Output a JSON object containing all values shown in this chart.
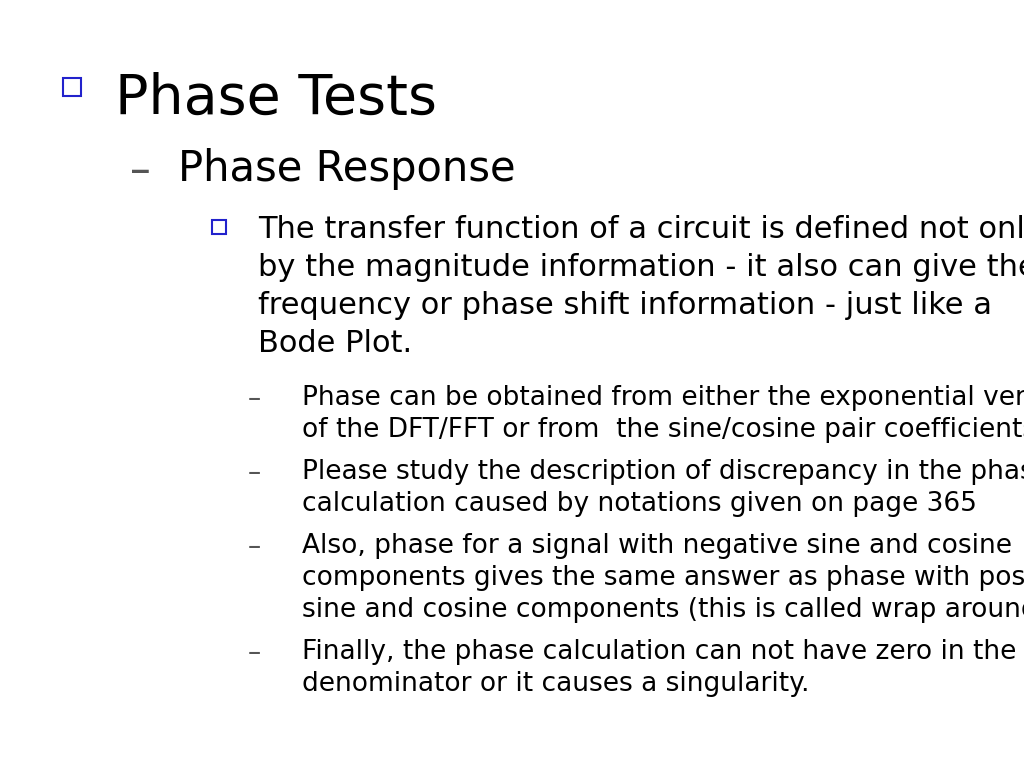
{
  "background_color": "#ffffff",
  "title": "Phase Tests",
  "title_color": "#000000",
  "title_bullet_color": "#2222cc",
  "subtitle": "Phase Response",
  "subtitle_dash_color": "#555555",
  "level2_lines": [
    "The transfer function of a circuit is defined not only",
    "by the magnitude information - it also can give the",
    "frequency or phase shift information - just like a",
    "Bode Plot."
  ],
  "level3_items": [
    {
      "lines": [
        "Phase can be obtained from either the exponential version",
        "of the DFT/FFT or from  the sine/cosine pair coefficients."
      ]
    },
    {
      "lines": [
        "Please study the description of discrepancy in the phase",
        "calculation caused by notations given on page 365"
      ]
    },
    {
      "lines": [
        "Also, phase for a signal with negative sine and cosine",
        "components gives the same answer as phase with positive",
        "sine and cosine components (this is called wrap around)"
      ]
    },
    {
      "lines": [
        "Finally, the phase calculation can not have zero in the",
        "denominator or it causes a singularity."
      ]
    }
  ]
}
